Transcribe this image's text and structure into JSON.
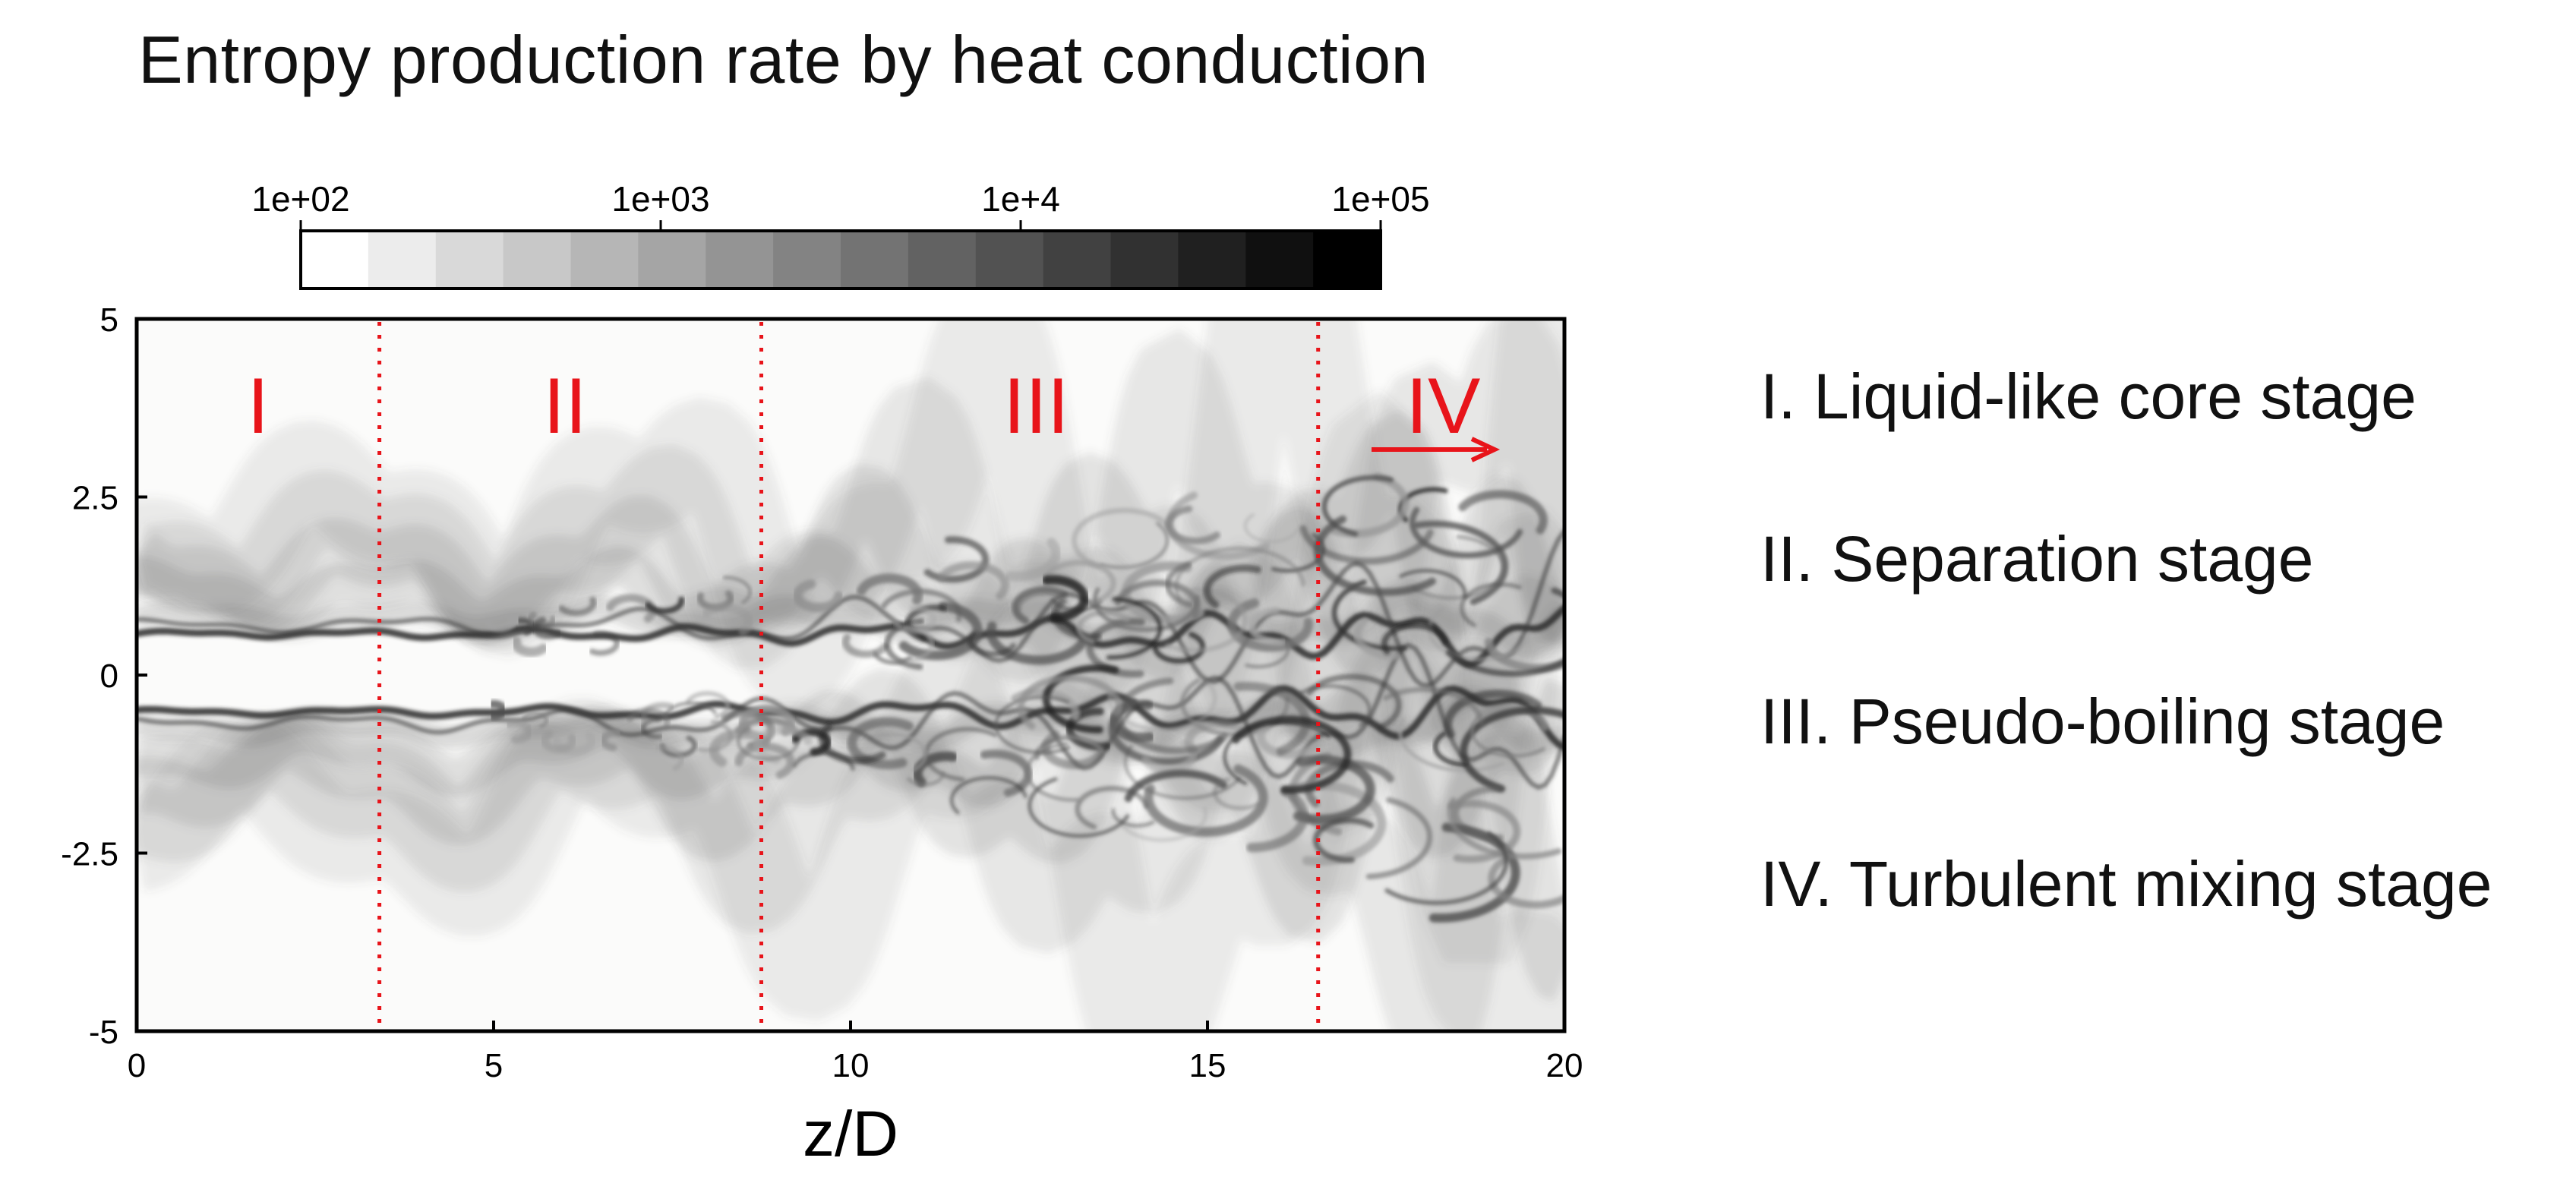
{
  "chart_data": {
    "type": "heatmap",
    "title": "Entropy production rate by heat conduction",
    "xlabel": "z/D",
    "ylabel": "",
    "xlim": [
      0,
      20
    ],
    "ylim": [
      -5,
      5
    ],
    "x_ticks": [
      {
        "value": 0,
        "label": "0"
      },
      {
        "value": 5,
        "label": "5"
      },
      {
        "value": 10,
        "label": "10"
      },
      {
        "value": 15,
        "label": "15"
      },
      {
        "value": 20,
        "label": "20"
      }
    ],
    "y_ticks": [
      {
        "value": 5,
        "label": "5"
      },
      {
        "value": 2.5,
        "label": "2.5"
      },
      {
        "value": 0,
        "label": "0"
      },
      {
        "value": -2.5,
        "label": "-2.5"
      },
      {
        "value": -5,
        "label": "-5"
      }
    ],
    "colorbar": {
      "scale": "log",
      "range": [
        100,
        100000
      ],
      "levels": 16,
      "ticks": [
        {
          "value": 100,
          "label": "1e+02"
        },
        {
          "value": 1000,
          "label": "1e+03"
        },
        {
          "value": 10000,
          "label": "1e+4"
        },
        {
          "value": 100000,
          "label": "1e+05"
        }
      ],
      "colormap": "white-to-black"
    },
    "stage_boundaries": [
      3.4,
      8.75,
      16.55
    ],
    "stage_labels": [
      {
        "label": "I",
        "z": 1.7
      },
      {
        "label": "II",
        "z": 6.0
      },
      {
        "label": "III",
        "z": 12.6
      },
      {
        "label": "IV",
        "z": 18.3
      }
    ],
    "boundary_color": "#e8141a",
    "annotation_color": "#e8141a"
  },
  "legend": {
    "items": [
      "I. Liquid-like core stage",
      "II. Separation stage",
      "III. Pseudo-boiling stage",
      "IV. Turbulent mixing stage"
    ]
  }
}
